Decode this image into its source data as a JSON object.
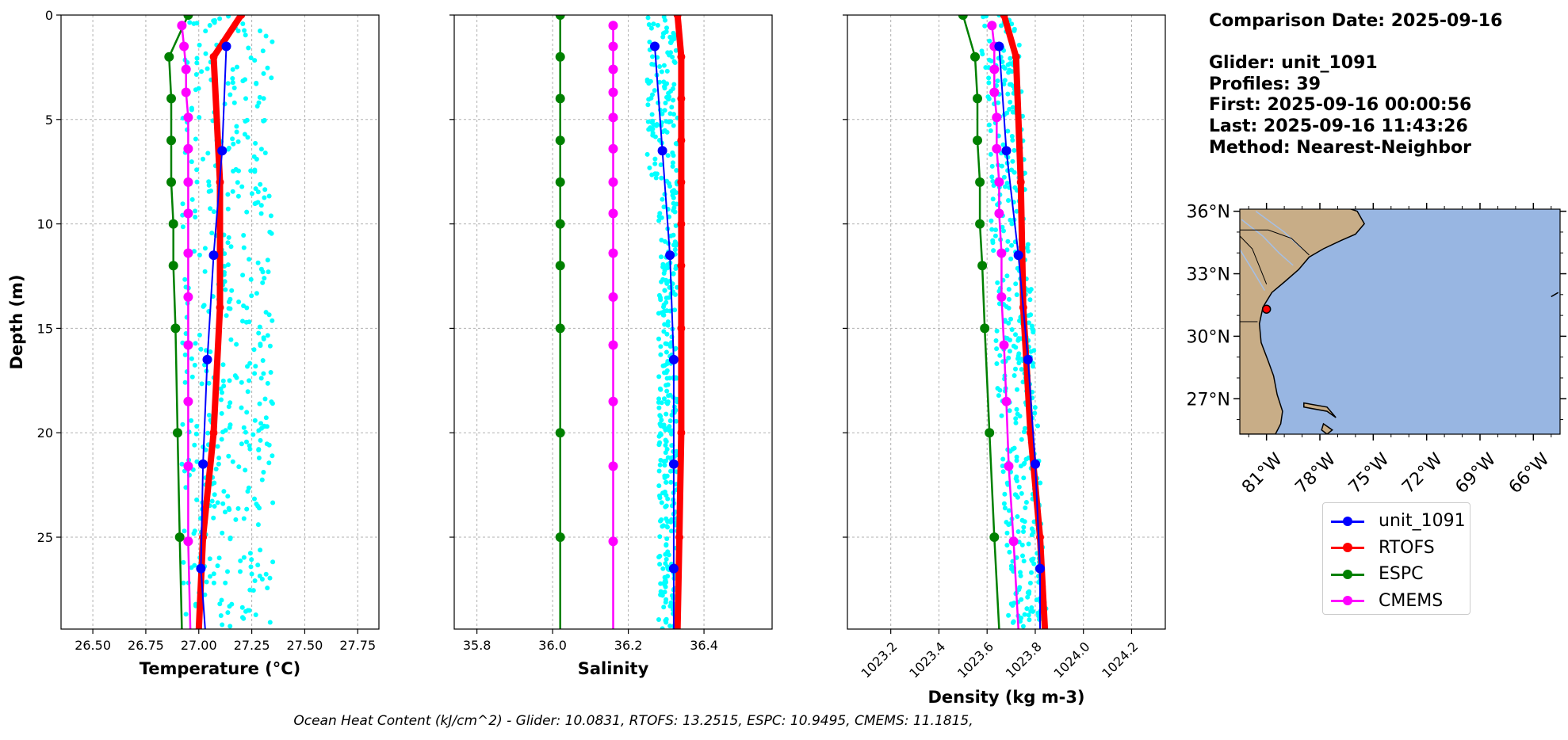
{
  "info": {
    "comparison_date": "Comparison Date: 2025-09-16",
    "glider": "Glider: unit_1091",
    "profiles": "Profiles: 39",
    "first": "First: 2025-09-16 00:00:56",
    "last": "Last: 2025-09-16 11:43:26",
    "method": "Method: Nearest-Neighbor"
  },
  "caption": "Ocean Heat Content (kJ/cm^2) - Glider: 10.0831,  RTOFS: 13.2515,  ESPC: 10.9495,  CMEMS: 11.1815,",
  "colors": {
    "glider": "#0000ff",
    "rtofs": "#ff0000",
    "espc": "#008000",
    "cmems": "#ff00ff",
    "scatter": "#00ffff",
    "ocean": "#98b6e2",
    "land": "#c8ad87",
    "river": "#a4bfe6"
  },
  "legend": [
    {
      "name": "unit_1091",
      "color": "#0000ff"
    },
    {
      "name": "RTOFS",
      "color": "#ff0000"
    },
    {
      "name": "ESPC",
      "color": "#008000"
    },
    {
      "name": "CMEMS",
      "color": "#ff00ff"
    }
  ],
  "chart_data": [
    {
      "type": "line",
      "xlabel": "Temperature (°C)",
      "ylabel": "Depth (m)",
      "xlim": [
        26.35,
        27.85
      ],
      "ylim": [
        29.4,
        0
      ],
      "y_inverted": true,
      "grid": true,
      "xticks": [
        26.5,
        26.75,
        27.0,
        27.25,
        27.5,
        27.75
      ],
      "xtick_labels": [
        "26.50",
        "26.75",
        "27.00",
        "27.25",
        "27.50",
        "27.75"
      ],
      "yticks": [
        0,
        5,
        10,
        15,
        20,
        25
      ],
      "ytick_labels": [
        "0",
        "5",
        "10",
        "15",
        "20",
        "25"
      ],
      "series": [
        {
          "name": "unit_1091",
          "depth": [
            1.5,
            6.5,
            11.5,
            16.5,
            21.5,
            26.5,
            29.4
          ],
          "values": [
            27.13,
            27.11,
            27.07,
            27.04,
            27.02,
            27.01,
            27.03
          ]
        },
        {
          "name": "RTOFS",
          "depth": [
            0,
            2,
            8,
            14,
            20,
            25,
            29.4
          ],
          "values": [
            27.2,
            27.07,
            27.1,
            27.1,
            27.07,
            27.02,
            27.0
          ]
        },
        {
          "name": "ESPC",
          "depth": [
            0,
            2,
            4,
            6,
            8,
            10,
            12,
            15,
            20,
            25,
            29.4
          ],
          "values": [
            26.95,
            26.86,
            26.87,
            26.87,
            26.87,
            26.88,
            26.88,
            26.89,
            26.9,
            26.91,
            26.92
          ]
        },
        {
          "name": "CMEMS",
          "depth": [
            0.5,
            1.5,
            2.6,
            3.7,
            4.9,
            6.4,
            8.0,
            9.5,
            11.4,
            13.5,
            15.8,
            18.5,
            21.6,
            25.2,
            29.4
          ],
          "values": [
            26.92,
            26.93,
            26.94,
            26.94,
            26.95,
            26.95,
            26.95,
            26.95,
            26.95,
            26.95,
            26.95,
            26.95,
            26.95,
            26.95,
            26.96
          ]
        }
      ],
      "scatter": {
        "name": "glider profiles",
        "x_range": [
          26.92,
          27.35
        ],
        "y_range": [
          0,
          29.4
        ]
      }
    },
    {
      "type": "line",
      "xlabel": "Salinity",
      "ylim": [
        29.4,
        0
      ],
      "xlim": [
        35.74,
        36.58
      ],
      "y_inverted": true,
      "grid": true,
      "xticks": [
        35.8,
        36.0,
        36.2,
        36.4
      ],
      "xtick_labels": [
        "35.8",
        "36.0",
        "36.2",
        "36.4"
      ],
      "series": [
        {
          "name": "unit_1091",
          "depth": [
            1.5,
            6.5,
            11.5,
            16.5,
            21.5,
            26.5,
            29.4
          ],
          "values": [
            36.27,
            36.29,
            36.31,
            36.32,
            36.32,
            36.32,
            36.32
          ]
        },
        {
          "name": "RTOFS",
          "depth": [
            0,
            2,
            4,
            6,
            8,
            10,
            12,
            15,
            20,
            25,
            29.4
          ],
          "values": [
            36.33,
            36.34,
            36.34,
            36.34,
            36.34,
            36.34,
            36.34,
            36.34,
            36.34,
            36.335,
            36.33
          ]
        },
        {
          "name": "ESPC",
          "depth": [
            0,
            2,
            4,
            6,
            8,
            10,
            12,
            15,
            20,
            25,
            29.4
          ],
          "values": [
            36.02,
            36.02,
            36.02,
            36.02,
            36.02,
            36.02,
            36.02,
            36.02,
            36.02,
            36.02,
            36.02
          ]
        },
        {
          "name": "CMEMS",
          "depth": [
            0.5,
            1.5,
            2.6,
            3.7,
            4.9,
            6.4,
            8.0,
            9.5,
            11.4,
            13.5,
            15.8,
            18.5,
            21.6,
            25.2,
            29.4
          ],
          "values": [
            36.16,
            36.16,
            36.16,
            36.16,
            36.16,
            36.16,
            36.16,
            36.16,
            36.16,
            36.16,
            36.16,
            36.16,
            36.16,
            36.16,
            36.16
          ]
        }
      ],
      "scatter": {
        "name": "glider profiles",
        "x_range": [
          36.25,
          36.33
        ],
        "y_range": [
          0,
          29.4
        ]
      }
    },
    {
      "type": "line",
      "xlabel": "Density (kg m-3)",
      "xlim": [
        1023.02,
        1024.34
      ],
      "ylim": [
        29.4,
        0
      ],
      "y_inverted": true,
      "grid": true,
      "xticks": [
        1023.2,
        1023.4,
        1023.6,
        1023.8,
        1024.0,
        1024.2
      ],
      "xtick_labels": [
        "1023.2",
        "1023.4",
        "1023.6",
        "1023.8",
        "1024.0",
        "1024.2"
      ],
      "series": [
        {
          "name": "unit_1091",
          "depth": [
            1.5,
            6.5,
            11.5,
            16.5,
            21.5,
            26.5,
            29.4
          ],
          "values": [
            1023.65,
            1023.68,
            1023.73,
            1023.77,
            1023.8,
            1023.82,
            1023.82
          ]
        },
        {
          "name": "RTOFS",
          "depth": [
            0,
            2,
            8,
            14,
            20,
            25,
            29.4
          ],
          "values": [
            1023.67,
            1023.72,
            1023.74,
            1023.75,
            1023.78,
            1023.82,
            1023.84
          ]
        },
        {
          "name": "ESPC",
          "depth": [
            0,
            2,
            4,
            6,
            8,
            10,
            12,
            15,
            20,
            25,
            29.4
          ],
          "values": [
            1023.5,
            1023.55,
            1023.56,
            1023.56,
            1023.57,
            1023.57,
            1023.58,
            1023.59,
            1023.61,
            1023.63,
            1023.65
          ]
        },
        {
          "name": "CMEMS",
          "depth": [
            0.5,
            1.5,
            2.6,
            3.7,
            4.9,
            6.4,
            8.0,
            9.5,
            11.4,
            13.5,
            15.8,
            18.5,
            21.6,
            25.2,
            29.4
          ],
          "values": [
            1023.62,
            1023.63,
            1023.63,
            1023.63,
            1023.64,
            1023.64,
            1023.65,
            1023.65,
            1023.66,
            1023.66,
            1023.67,
            1023.68,
            1023.69,
            1023.71,
            1023.73
          ]
        }
      ],
      "scatter": {
        "name": "glider profiles",
        "x_range": [
          1023.63,
          1023.85
        ],
        "y_range": [
          0,
          29.4
        ]
      }
    },
    {
      "type": "map",
      "lon_range": [
        -82.5,
        -64.5
      ],
      "lat_range": [
        25.3,
        36.1
      ],
      "lat_ticks": [
        "36°N",
        "33°N",
        "30°N",
        "27°N"
      ],
      "lat_tick_values": [
        36,
        33,
        30,
        27
      ],
      "lon_ticks": [
        "81°W",
        "78°W",
        "75°W",
        "72°W",
        "69°W",
        "66°W"
      ],
      "lon_tick_values": [
        -81,
        -78,
        -75,
        -72,
        -69,
        -66
      ],
      "marker": {
        "lon": -81.0,
        "lat": 31.3,
        "color": "#ff0000"
      }
    }
  ]
}
